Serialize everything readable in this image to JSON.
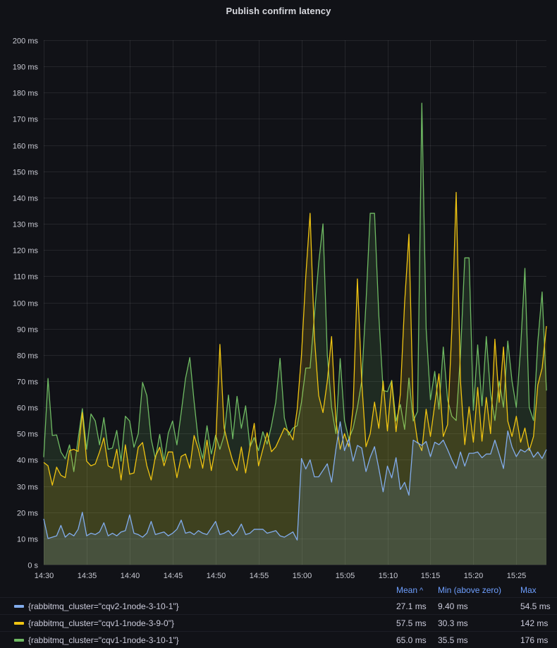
{
  "panel": {
    "title": "Publish confirm latency"
  },
  "colors": {
    "background": "#111217",
    "grid": "rgba(204,204,220,0.10)",
    "tick_text": "#c9cad3",
    "text": "#ccccdc",
    "header_link": "#6e9fff",
    "row_separator": "rgba(204,204,220,0.07)"
  },
  "legend": {
    "headers": [
      {
        "label": "Mean",
        "sort": "^"
      },
      {
        "label": "Min (above zero)",
        "sort": ""
      },
      {
        "label": "Max",
        "sort": ""
      }
    ],
    "rows": [
      {
        "label": "{rabbitmq_cluster=\"cqv2-1node-3-10-1\"}",
        "mean": "27.1 ms",
        "min": "9.40 ms",
        "max": "54.5 ms"
      },
      {
        "label": "{rabbitmq_cluster=\"cqv1-1node-3-9-0\"}",
        "mean": "57.5 ms",
        "min": "30.3 ms",
        "max": "142 ms"
      },
      {
        "label": "{rabbitmq_cluster=\"cqv1-1node-3-10-1\"}",
        "mean": "65.0 ms",
        "min": "35.5 ms",
        "max": "176 ms"
      }
    ]
  },
  "chart_data": {
    "type": "line",
    "title": "Publish confirm latency",
    "unit": "ms",
    "grid": true,
    "legend_position": "bottom",
    "fill_opacity": 0.15,
    "line_width": 1.3,
    "ylim": [
      0,
      200
    ],
    "x_start_min": 0,
    "x_step_min": 0.5,
    "x_total_min": 58.5,
    "x_tick_minutes": [
      0,
      5,
      10,
      15,
      20,
      25,
      30,
      35,
      40,
      45,
      50,
      55
    ],
    "x_tick_labels": [
      "14:30",
      "14:35",
      "14:40",
      "14:45",
      "14:50",
      "14:55",
      "15:00",
      "15:05",
      "15:10",
      "15:15",
      "15:20",
      "15:25"
    ],
    "y_ticks": [
      0,
      10,
      20,
      30,
      40,
      50,
      60,
      70,
      80,
      90,
      100,
      110,
      120,
      130,
      140,
      150,
      160,
      170,
      180,
      190,
      200
    ],
    "y_tick_labels": [
      "0 s",
      "10 ms",
      "20 ms",
      "30 ms",
      "40 ms",
      "50 ms",
      "60 ms",
      "70 ms",
      "80 ms",
      "90 ms",
      "100 ms",
      "110 ms",
      "120 ms",
      "130 ms",
      "140 ms",
      "150 ms",
      "160 ms",
      "170 ms",
      "180 ms",
      "190 ms",
      "200 ms"
    ],
    "series": [
      {
        "name": "{rabbitmq_cluster=\"cqv2-1node-3-10-1\"}",
        "color": "#82ACEC",
        "mean_ms": 27.1,
        "min_ms": 9.4,
        "max_ms": 54.5,
        "values": [
          17.5,
          10,
          10.5,
          11,
          15,
          10.5,
          12,
          11,
          13.5,
          20,
          11,
          12,
          11.5,
          12.5,
          16,
          11,
          12,
          11,
          12.5,
          13,
          19,
          12,
          11.5,
          10.5,
          12,
          16.5,
          11.5,
          12,
          12.5,
          11,
          12,
          13.5,
          17,
          12,
          12.5,
          11.5,
          13,
          12,
          11.5,
          14,
          16.5,
          11.5,
          12,
          13,
          11,
          12.5,
          15.5,
          11.5,
          12,
          13.5,
          13.5,
          13.5,
          12,
          12.5,
          13,
          11,
          10.5,
          11.5,
          12.5,
          9.4,
          40.5,
          36.5,
          40,
          33.5,
          33.5,
          36,
          38.5,
          31.5,
          44,
          54.5,
          43.5,
          48,
          39.5,
          45.5,
          44.5,
          35.5,
          41,
          45,
          36.7,
          27.8,
          37.6,
          33.1,
          40.8,
          28.7,
          31.4,
          26.5,
          47.5,
          46.5,
          45.5,
          47,
          41.2,
          46.7,
          45.8,
          47.5,
          43.9,
          40,
          36.7,
          43,
          37.6,
          42.5,
          42.5,
          43,
          40.8,
          42.2,
          42.2,
          47.5,
          42.2,
          36.7,
          51,
          44.9,
          41.2,
          43.9,
          43,
          44.5,
          41,
          43,
          40.5,
          43.9
        ]
      },
      {
        "name": "{rabbitmq_cluster=\"cqv1-1node-3-9-0\"}",
        "color": "#EFC412",
        "mean_ms": 57.5,
        "min_ms": 30.3,
        "max_ms": 142,
        "values": [
          39,
          37.7,
          30.3,
          37.2,
          34.1,
          33.2,
          43.5,
          44,
          43.2,
          58,
          39.5,
          37.7,
          38.4,
          43,
          48.4,
          37.7,
          36.8,
          44,
          32.3,
          45.7,
          34.5,
          35,
          44.8,
          46.6,
          37.7,
          32.3,
          41.3,
          44.8,
          37.7,
          43,
          43,
          33.2,
          41.3,
          42.2,
          36.8,
          49.3,
          44,
          36.8,
          47.5,
          35.9,
          45,
          84,
          52.1,
          45.3,
          39.5,
          35.9,
          44.9,
          35,
          44.9,
          53.9,
          37.7,
          44,
          50.3,
          43.1,
          44.9,
          48.5,
          52.1,
          50.7,
          47.6,
          59.3,
          80,
          110,
          134,
          87,
          64.5,
          58,
          70,
          87,
          55,
          44,
          50,
          45,
          60,
          109,
          70,
          45,
          50,
          62,
          52,
          70,
          51,
          70,
          50.7,
          65,
          100,
          126,
          58.4,
          47.1,
          43.5,
          59.3,
          48.9,
          61.1,
          72.8,
          48.9,
          53.4,
          90,
          142,
          70,
          45.8,
          60.2,
          46.7,
          67.6,
          47.1,
          63.8,
          50,
          86,
          61.9,
          83,
          54.8,
          48.9,
          56.6,
          46.7,
          52.1,
          43.5,
          48.9,
          68.5,
          75,
          91
        ]
      },
      {
        "name": "{rabbitmq_cluster=\"cqv1-1node-3-10-1\"}",
        "color": "#6FBA63",
        "mean_ms": 65.0,
        "min_ms": 35.5,
        "max_ms": 176,
        "values": [
          41,
          71,
          49.3,
          49.5,
          43,
          40.4,
          45.7,
          35.5,
          48,
          59.5,
          44,
          57.5,
          54.8,
          45.7,
          56.1,
          44,
          44.5,
          51.2,
          39.5,
          56.6,
          54.8,
          44.8,
          50,
          69.5,
          64.5,
          48,
          40.4,
          49.7,
          39.5,
          50.2,
          54.8,
          45.7,
          58,
          71,
          79,
          62.2,
          47,
          40.4,
          53,
          42.2,
          49.4,
          44,
          49.4,
          64.7,
          48,
          64.2,
          52,
          60.6,
          44.9,
          48.5,
          43.5,
          50.7,
          46,
          53,
          62,
          78.7,
          56,
          49.4,
          52.1,
          53,
          62,
          75,
          75,
          95,
          115,
          130,
          80,
          60,
          50,
          78.6,
          55,
          48,
          52,
          60,
          70,
          100,
          134,
          134,
          95,
          66.4,
          66,
          70.3,
          54.8,
          61.1,
          51.6,
          71.2,
          54.8,
          58.4,
          176,
          90,
          62.9,
          73.7,
          59.3,
          83,
          62.9,
          56.6,
          55,
          80,
          117,
          117,
          58.9,
          83.8,
          60.6,
          87,
          65,
          55,
          70,
          60,
          85.3,
          70,
          60,
          82.6,
          113,
          60,
          55,
          85,
          104,
          66.4
        ]
      }
    ]
  }
}
